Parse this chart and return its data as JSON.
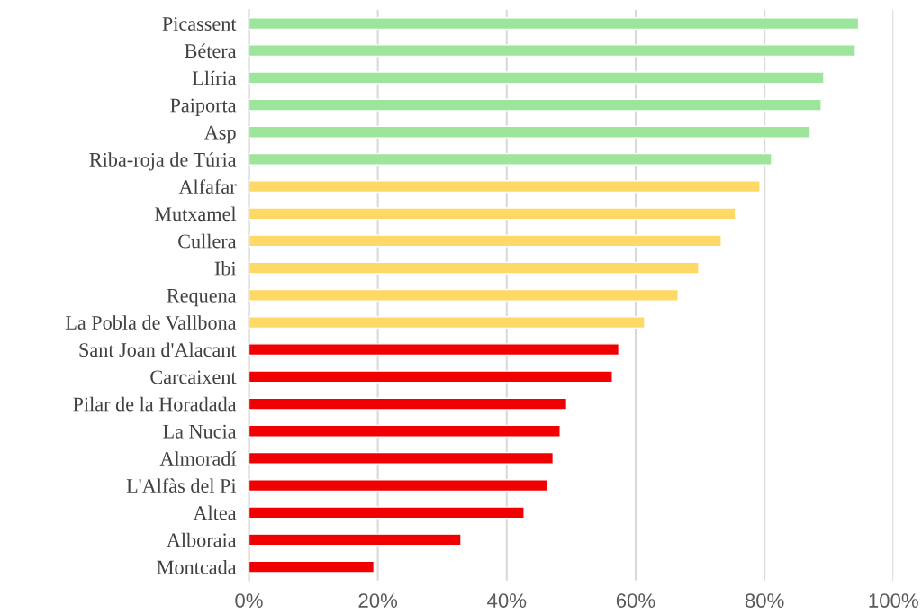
{
  "chart_data": {
    "type": "bar",
    "orientation": "horizontal",
    "categories": [
      "Picassent",
      "Bétera",
      "Llíria",
      "Paiporta",
      "Asp",
      "Riba-roja de Túria",
      "Alfafar",
      "Mutxamel",
      "Cullera",
      "Ibi",
      "Requena",
      "La Pobla de Vallbona",
      "Sant Joan d'Alacant",
      "Carcaixent",
      "Pilar de la Horadada",
      "La Nucia",
      "Almoradí",
      "L'Alfàs del Pi",
      "Altea",
      "Alboraia",
      "Montcada"
    ],
    "values": [
      94.6,
      94.1,
      89.2,
      88.8,
      87.1,
      81.1,
      79.3,
      75.5,
      73.3,
      69.8,
      66.6,
      61.4,
      57.4,
      56.4,
      49.3,
      48.3,
      47.2,
      46.3,
      42.7,
      32.9,
      19.4
    ],
    "colors": [
      "#9de59a",
      "#9de59a",
      "#9de59a",
      "#9de59a",
      "#9de59a",
      "#9de59a",
      "#ffd966",
      "#ffd966",
      "#ffd966",
      "#ffd966",
      "#ffd966",
      "#ffd966",
      "#f00000",
      "#f00000",
      "#f00000",
      "#f00000",
      "#f00000",
      "#f00000",
      "#f00000",
      "#f00000",
      "#f00000"
    ],
    "xlim": [
      0,
      100
    ],
    "xticks": [
      {
        "value": 0,
        "label": "0%"
      },
      {
        "value": 20,
        "label": "20%"
      },
      {
        "value": 40,
        "label": "40%"
      },
      {
        "value": 60,
        "label": "60%"
      },
      {
        "value": 80,
        "label": "80%"
      },
      {
        "value": 100,
        "label": "100%"
      }
    ],
    "grid": "x",
    "legend": false
  }
}
